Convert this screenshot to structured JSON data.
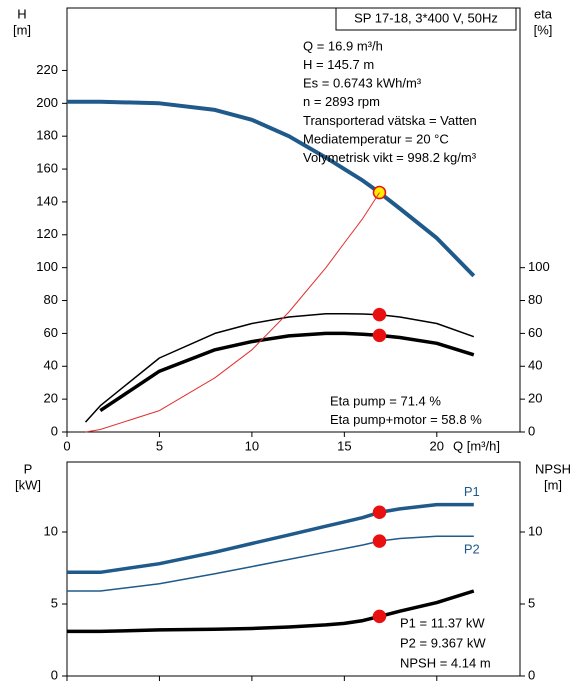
{
  "chart_data": [
    {
      "type": "line",
      "box_title": "SP 17-18, 3*400 V, 50Hz",
      "annotations": [
        "Q = 16.9 m³/h",
        "H = 145.7 m",
        "Es = 0.6743 kWh/m³",
        "n = 2893 rpm",
        "Transporterad vätska = Vatten",
        "Mediatemperatur = 20 °C",
        "Volymetrisk vikt = 998.2 kg/m³"
      ],
      "annotations_bottom": [
        "Eta pump = 71.4 %",
        "Eta pump+motor = 58.8 %"
      ],
      "y_label": [
        "H",
        "[m]"
      ],
      "y2_label": [
        "eta",
        "[%]"
      ],
      "x_label": "Q [m³/h]",
      "x": [
        0,
        1,
        1.8,
        5,
        8,
        10,
        12,
        14,
        15,
        16,
        16.9,
        18,
        20,
        22
      ],
      "xlim": [
        0,
        24.5
      ],
      "xticks": [
        0,
        5,
        10,
        15,
        20
      ],
      "xtick_labels": true,
      "ylim": [
        0,
        258
      ],
      "yticks": [
        0,
        20,
        40,
        60,
        80,
        100,
        120,
        140,
        160,
        180,
        200,
        220
      ],
      "y2lim": [
        0,
        258
      ],
      "y2ticks": [
        0,
        20,
        40,
        60,
        80,
        100
      ],
      "highlight_x": 16.9,
      "series": [
        {
          "color": "#1f5a8a",
          "width": 4,
          "values": [
            201,
            201,
            201,
            200,
            196,
            190,
            180,
            167,
            160,
            153,
            145.7,
            136,
            118,
            95
          ],
          "marker_color": "#ffee00"
        },
        {
          "color": "#000000",
          "width": 1.5,
          "axis": "y2",
          "values": [
            null,
            6,
            16,
            45,
            60,
            66,
            70,
            72,
            72,
            71.8,
            71.4,
            70,
            66,
            58
          ],
          "marker_color": "#e81010"
        },
        {
          "color": "#000000",
          "width": 3.5,
          "axis": "y2",
          "values": [
            null,
            null,
            13,
            37,
            50,
            55,
            58.5,
            60,
            60,
            59.5,
            58.8,
            57.5,
            54,
            47
          ],
          "marker_color": "#e81010"
        },
        {
          "color": "#e03030",
          "width": 1,
          "values": [
            null,
            0,
            1.5,
            13,
            33,
            50,
            73,
            100,
            115,
            130,
            145.7,
            null,
            null,
            null
          ]
        }
      ]
    },
    {
      "type": "line",
      "annotations_bottom": [
        "P1 = 11.37 kW",
        "P2 = 9.367 kW",
        "NPSH = 4.14 m"
      ],
      "y_label": [
        "P",
        "[kW]"
      ],
      "y2_label": [
        "NPSH",
        "[m]"
      ],
      "x": [
        0,
        1,
        1.8,
        5,
        8,
        10,
        12,
        14,
        15,
        16,
        16.9,
        18,
        20,
        22
      ],
      "xlim": [
        0,
        24.5
      ],
      "xticks": [
        0,
        5,
        10,
        15,
        20
      ],
      "xtick_labels": false,
      "ylim": [
        0,
        14.86
      ],
      "yticks": [
        0,
        5,
        10
      ],
      "y2lim": [
        0,
        14.86
      ],
      "y2ticks": [
        0,
        5,
        10
      ],
      "highlight_x": 16.9,
      "series": [
        {
          "name": "P1",
          "label_side": "above",
          "color": "#1f5a8a",
          "width": 3.5,
          "values": [
            7.2,
            7.2,
            7.2,
            7.8,
            8.6,
            9.2,
            9.8,
            10.4,
            10.7,
            11.0,
            11.37,
            11.6,
            11.9,
            11.9
          ],
          "marker_color": "#e81010"
        },
        {
          "name": "P2",
          "label_side": "below",
          "color": "#1f5a8a",
          "width": 1.5,
          "values": [
            5.9,
            5.9,
            5.9,
            6.4,
            7.1,
            7.6,
            8.1,
            8.6,
            8.85,
            9.1,
            9.367,
            9.55,
            9.7,
            9.7
          ],
          "marker_color": "#e81010"
        },
        {
          "color": "#000000",
          "width": 3.5,
          "axis": "y2",
          "values": [
            3.1,
            3.1,
            3.1,
            3.2,
            3.25,
            3.3,
            3.4,
            3.55,
            3.65,
            3.85,
            4.14,
            4.5,
            5.1,
            5.9
          ],
          "marker_color": "#e81010"
        }
      ]
    }
  ]
}
